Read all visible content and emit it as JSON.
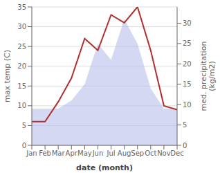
{
  "chart_data": {
    "type": "combo",
    "xlabel": "date (month)",
    "ylabel": "max temp (C)",
    "y2label": "med. precipitation\n(kg/m2)",
    "categories": [
      "Jan",
      "Feb",
      "Mar",
      "Apr",
      "May",
      "Jun",
      "Jul",
      "Aug",
      "Sep",
      "Oct",
      "Nov",
      "Dec"
    ],
    "series": [
      {
        "type": "area",
        "axis": "y2",
        "color": "#b0b8e8",
        "values": [
          9,
          9,
          9,
          11,
          15,
          25,
          21,
          31,
          25,
          14,
          9,
          9
        ]
      },
      {
        "type": "line",
        "color": "#b03030",
        "values": [
          6,
          6,
          11,
          17,
          27,
          24,
          33,
          31,
          35,
          24,
          10,
          9
        ]
      }
    ],
    "ylim": [
      0,
      35
    ],
    "yticks": [
      0,
      5,
      10,
      15,
      20,
      25,
      30,
      35
    ],
    "y2lim": [
      0,
      34
    ],
    "y2ticks": [
      0,
      5,
      10,
      15,
      20,
      25,
      30
    ],
    "grid": true
  }
}
